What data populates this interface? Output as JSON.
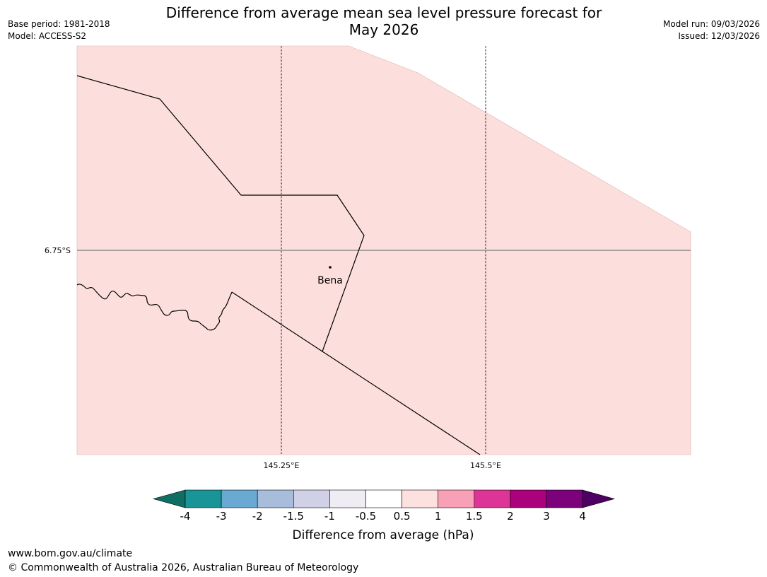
{
  "title": {
    "line1": "Difference from average mean sea level pressure forecast for",
    "line2": "May 2026"
  },
  "meta_left": {
    "base_period": "Base period: 1981-2018",
    "model": "Model: ACCESS-S2"
  },
  "meta_right": {
    "model_run": "Model run: 09/03/2026",
    "issued": "Issued: 12/03/2026"
  },
  "map": {
    "fill_color": "#fcdfdd",
    "lat_labels": [
      "6.75°S"
    ],
    "lon_labels": [
      "145.25°E",
      "145.5°E"
    ],
    "place": {
      "name": "Bena"
    }
  },
  "colorbar": {
    "label": "Difference from average (hPa)",
    "ticks": [
      "-4",
      "-3",
      "-2",
      "-1.5",
      "-1",
      "-0.5",
      "0.5",
      "1",
      "1.5",
      "2",
      "3",
      "4"
    ],
    "colors": [
      "#0e6e64",
      "#1a9597",
      "#69a9d2",
      "#a8bcdc",
      "#d0d1e6",
      "#f0ecf3",
      "#ffffff",
      "#fde1df",
      "#f8a0b6",
      "#dc3497",
      "#ac017c",
      "#7b027a",
      "#4d0163"
    ]
  },
  "footer": {
    "url": "www.bom.gov.au/climate",
    "copyright": "© Commonwealth of Australia 2026, Australian Bureau of Meteorology"
  }
}
